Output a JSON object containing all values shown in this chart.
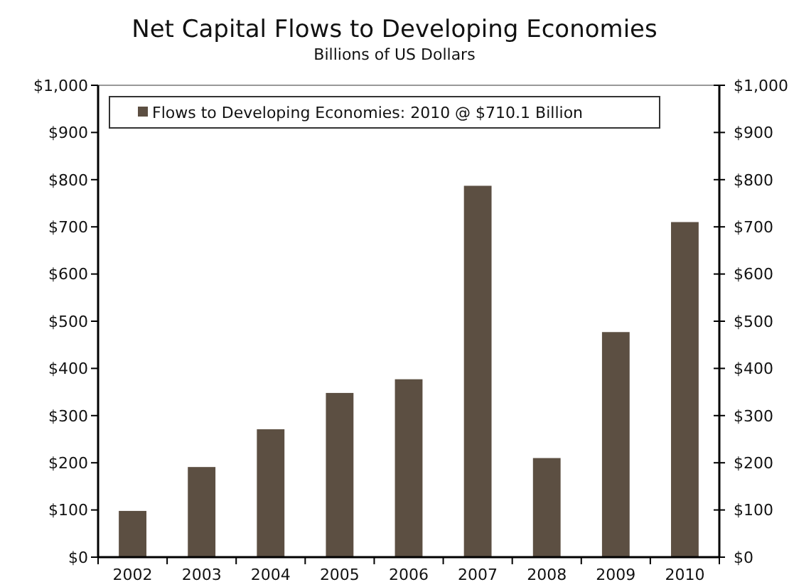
{
  "chart_data": {
    "type": "bar",
    "title": "Net Capital Flows to Developing Economies",
    "subtitle": "Billions of US Dollars",
    "categories": [
      "2002",
      "2003",
      "2004",
      "2005",
      "2006",
      "2007",
      "2008",
      "2009",
      "2010"
    ],
    "series": [
      {
        "name": "Flows to Developing Economies: 2010 @ $710.1 Billion",
        "color": "#5c4f42",
        "values": [
          98,
          191,
          271,
          348,
          377,
          787,
          210,
          477,
          710.1
        ]
      }
    ],
    "ylim": [
      0,
      1000
    ],
    "yticks": [
      {
        "value": 0,
        "label": "$0"
      },
      {
        "value": 100,
        "label": "$100"
      },
      {
        "value": 200,
        "label": "$200"
      },
      {
        "value": 300,
        "label": "$300"
      },
      {
        "value": 400,
        "label": "$400"
      },
      {
        "value": 500,
        "label": "$500"
      },
      {
        "value": 600,
        "label": "$600"
      },
      {
        "value": 700,
        "label": "$700"
      },
      {
        "value": 800,
        "label": "$800"
      },
      {
        "value": 900,
        "label": "$900"
      },
      {
        "value": 1000,
        "label": "$1,000"
      }
    ],
    "y2lim": [
      0,
      1000
    ],
    "y2ticks": [
      {
        "value": 0,
        "label": "$0"
      },
      {
        "value": 100,
        "label": "$100"
      },
      {
        "value": 200,
        "label": "$200"
      },
      {
        "value": 300,
        "label": "$300"
      },
      {
        "value": 400,
        "label": "$400"
      },
      {
        "value": 500,
        "label": "$500"
      },
      {
        "value": 600,
        "label": "$600"
      },
      {
        "value": 700,
        "label": "$700"
      },
      {
        "value": 800,
        "label": "$800"
      },
      {
        "value": 900,
        "label": "$900"
      },
      {
        "value": 1000,
        "label": "$1,000"
      }
    ],
    "grid": false,
    "legend": "top left"
  }
}
